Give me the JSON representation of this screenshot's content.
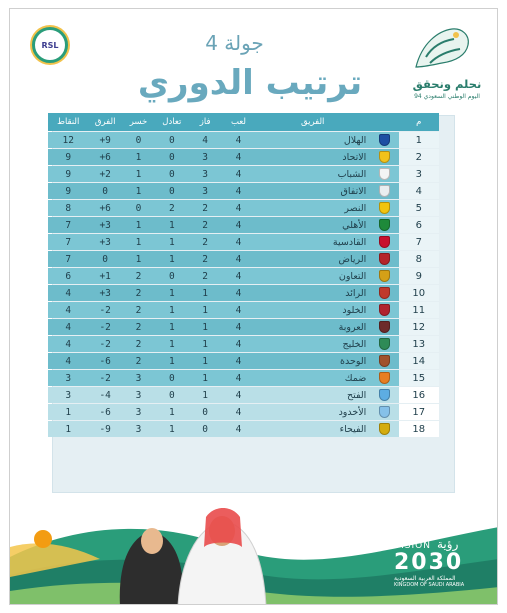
{
  "header": {
    "round": "جولة 4",
    "title": "ترتيب الدوري",
    "league_badge": "RSL",
    "national_day_slogan": "نحلم ونحقق",
    "national_day_sub": "اليوم الوطني السعودي 94"
  },
  "table": {
    "columns": {
      "pos": "م",
      "team": "الفريق",
      "played": "لعب",
      "won": "فاز",
      "drawn": "تعادل",
      "lost": "خسر",
      "gd": "الفرق",
      "pts": "النقاط"
    },
    "rows": [
      {
        "pos": "1",
        "team": "الهلال",
        "played": "4",
        "won": "4",
        "drawn": "0",
        "lost": "0",
        "gd": "+9",
        "pts": "12",
        "crest": "#1d4fa3"
      },
      {
        "pos": "2",
        "team": "الاتحاد",
        "played": "4",
        "won": "3",
        "drawn": "0",
        "lost": "1",
        "gd": "+6",
        "pts": "9",
        "crest": "#f2c21a"
      },
      {
        "pos": "3",
        "team": "الشباب",
        "played": "4",
        "won": "3",
        "drawn": "0",
        "lost": "1",
        "gd": "+2",
        "pts": "9",
        "crest": "#f4f4f4"
      },
      {
        "pos": "4",
        "team": "الاتفاق",
        "played": "4",
        "won": "3",
        "drawn": "0",
        "lost": "1",
        "gd": "0",
        "pts": "9",
        "crest": "#e9eef0"
      },
      {
        "pos": "5",
        "team": "النصر",
        "played": "4",
        "won": "2",
        "drawn": "2",
        "lost": "0",
        "gd": "+6",
        "pts": "8",
        "crest": "#f1c40f"
      },
      {
        "pos": "6",
        "team": "الأهلي",
        "played": "4",
        "won": "2",
        "drawn": "1",
        "lost": "1",
        "gd": "+3",
        "pts": "7",
        "crest": "#1e8a3a"
      },
      {
        "pos": "7",
        "team": "القادسية",
        "played": "4",
        "won": "2",
        "drawn": "1",
        "lost": "1",
        "gd": "+3",
        "pts": "7",
        "crest": "#c8102e"
      },
      {
        "pos": "8",
        "team": "الرياض",
        "played": "4",
        "won": "2",
        "drawn": "1",
        "lost": "1",
        "gd": "0",
        "pts": "7",
        "crest": "#b5262b"
      },
      {
        "pos": "9",
        "team": "التعاون",
        "played": "4",
        "won": "2",
        "drawn": "0",
        "lost": "2",
        "gd": "+1",
        "pts": "6",
        "crest": "#d4a017"
      },
      {
        "pos": "10",
        "team": "الرائد",
        "played": "4",
        "won": "1",
        "drawn": "1",
        "lost": "2",
        "gd": "+3",
        "pts": "4",
        "crest": "#c0392b"
      },
      {
        "pos": "11",
        "team": "الخلود",
        "played": "4",
        "won": "1",
        "drawn": "1",
        "lost": "2",
        "gd": "-2",
        "pts": "4",
        "crest": "#b0232f"
      },
      {
        "pos": "12",
        "team": "العروبة",
        "played": "4",
        "won": "1",
        "drawn": "1",
        "lost": "2",
        "gd": "-2",
        "pts": "4",
        "crest": "#6d2b2b"
      },
      {
        "pos": "13",
        "team": "الخليج",
        "played": "4",
        "won": "1",
        "drawn": "1",
        "lost": "2",
        "gd": "-2",
        "pts": "4",
        "crest": "#2e8b57"
      },
      {
        "pos": "14",
        "team": "الوحدة",
        "played": "4",
        "won": "1",
        "drawn": "1",
        "lost": "2",
        "gd": "-6",
        "pts": "4",
        "crest": "#a0522d"
      },
      {
        "pos": "15",
        "team": "ضمك",
        "played": "4",
        "won": "1",
        "drawn": "0",
        "lost": "3",
        "gd": "-2",
        "pts": "3",
        "crest": "#e67e22"
      },
      {
        "pos": "16",
        "team": "الفتح",
        "played": "4",
        "won": "1",
        "drawn": "0",
        "lost": "3",
        "gd": "-4",
        "pts": "3",
        "crest": "#5dade2",
        "zone": "relegation"
      },
      {
        "pos": "17",
        "team": "الأخدود",
        "played": "4",
        "won": "0",
        "drawn": "1",
        "lost": "3",
        "gd": "-6",
        "pts": "1",
        "crest": "#85c1e9",
        "zone": "relegation"
      },
      {
        "pos": "18",
        "team": "الفيحاء",
        "played": "4",
        "won": "0",
        "drawn": "1",
        "lost": "3",
        "gd": "-9",
        "pts": "1",
        "crest": "#d4ac0d",
        "zone": "relegation"
      }
    ]
  },
  "footer": {
    "vision_label": "VISION",
    "vision_arabic": "رؤية",
    "vision_year": "2030",
    "kingdom_ar": "المملكة العربية السعودية",
    "kingdom_en": "KINGDOM OF SAUDI ARABIA"
  },
  "colors": {
    "header_teal": "#49a9bd",
    "row_teal": "#7cc6d4",
    "relegation_row": "#b9dfe7",
    "title_teal": "#69a9be",
    "footer_green": "#2a9d7a"
  }
}
